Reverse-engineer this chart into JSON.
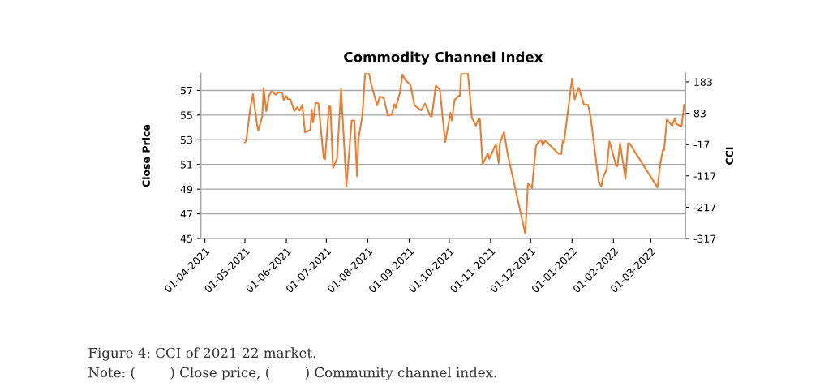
{
  "chart_data": {
    "type": "line",
    "title": "Commodity Channel Index",
    "ylabel": "Close Price",
    "y2label": "CCI",
    "ylim": [
      45,
      58.4
    ],
    "yticks": [
      45,
      47,
      49,
      51,
      53,
      55,
      57
    ],
    "y2lim": [
      -317,
      211
    ],
    "y2ticks": [
      -317,
      -217,
      -117,
      -17,
      83,
      183
    ],
    "xlim": [
      "2021-03-29",
      "2022-03-27"
    ],
    "xticks": [
      {
        "value": "2021-04-01",
        "label": "01-04-2021"
      },
      {
        "value": "2021-05-01",
        "label": "01-05-2021"
      },
      {
        "value": "2021-06-01",
        "label": "01-06-2021"
      },
      {
        "value": "2021-07-01",
        "label": "01-07-2021"
      },
      {
        "value": "2021-08-01",
        "label": "01-08-2021"
      },
      {
        "value": "2021-09-01",
        "label": "01-09-2021"
      },
      {
        "value": "2021-10-01",
        "label": "01-10-2021"
      },
      {
        "value": "2021-11-01",
        "label": "01-11-2021"
      },
      {
        "value": "2021-12-01",
        "label": "01-12-2021"
      },
      {
        "value": "2022-01-01",
        "label": "01-01-2022"
      },
      {
        "value": "2022-02-01",
        "label": "01-02-2022"
      },
      {
        "value": "2022-03-01",
        "label": "01-03-2022"
      }
    ],
    "grid": "y",
    "legend": false,
    "marker": "none",
    "line_style": "solid",
    "series": [
      {
        "color": "#ed7d31",
        "axis": "y2",
        "x": [
          "2021-05-01",
          "2021-05-02",
          "2021-05-05",
          "2021-05-07",
          "2021-05-10",
          "2021-05-11",
          "2021-05-14",
          "2021-05-15",
          "2021-05-17",
          "2021-05-19",
          "2021-05-21",
          "2021-05-24",
          "2021-05-26",
          "2021-05-29",
          "2021-05-30",
          "2021-06-01",
          "2021-06-02",
          "2021-06-04",
          "2021-06-07",
          "2021-06-09",
          "2021-06-11",
          "2021-06-13",
          "2021-06-15",
          "2021-06-19",
          "2021-06-20",
          "2021-06-21",
          "2021-06-23",
          "2021-06-25",
          "2021-06-29",
          "2021-06-30",
          "2021-07-03",
          "2021-07-04",
          "2021-07-06",
          "2021-07-09",
          "2021-07-12",
          "2021-07-16",
          "2021-07-20",
          "2021-07-22",
          "2021-07-24",
          "2021-07-25",
          "2021-07-28",
          "2021-07-30",
          "2021-08-02",
          "2021-08-03",
          "2021-08-08",
          "2021-08-10",
          "2021-08-13",
          "2021-08-16",
          "2021-08-19",
          "2021-08-21",
          "2021-08-22",
          "2021-08-25",
          "2021-08-27",
          "2021-08-29",
          "2021-09-02",
          "2021-09-05",
          "2021-09-10",
          "2021-09-13",
          "2021-09-17",
          "2021-09-18",
          "2021-09-21",
          "2021-09-24",
          "2021-09-28",
          "2021-10-02",
          "2021-10-03",
          "2021-10-05",
          "2021-10-08",
          "2021-10-09",
          "2021-10-10",
          "2021-10-15",
          "2021-10-18",
          "2021-10-21",
          "2021-10-23",
          "2021-10-24",
          "2021-10-26",
          "2021-10-30",
          "2021-10-31",
          "2021-11-05",
          "2021-11-07",
          "2021-11-08",
          "2021-11-11",
          "2021-11-14",
          "2021-11-27",
          "2021-11-29",
          "2021-12-02",
          "2021-12-05",
          "2021-12-07",
          "2021-12-09",
          "2021-12-10",
          "2021-12-12",
          "2021-12-22",
          "2021-12-24",
          "2021-12-25",
          "2021-12-26",
          "2022-01-01",
          "2022-01-03",
          "2022-01-06",
          "2022-01-10",
          "2022-01-13",
          "2022-01-15",
          "2022-01-21",
          "2022-01-23",
          "2022-01-24",
          "2022-01-27",
          "2022-01-29",
          "2022-02-01",
          "2022-02-03",
          "2022-02-04",
          "2022-02-06",
          "2022-02-10",
          "2022-02-12",
          "2022-02-13",
          "2022-03-06",
          "2022-03-08",
          "2022-03-10",
          "2022-03-11",
          "2022-03-13",
          "2022-03-17",
          "2022-03-19",
          "2022-03-20",
          "2022-03-24",
          "2022-03-26"
        ],
        "values": [
          -10,
          -3,
          99,
          144,
          49,
          28,
          73,
          164,
          89,
          138,
          154,
          142,
          149,
          149,
          125,
          138,
          128,
          128,
          89,
          102,
          91,
          110,
          22,
          30,
          95,
          54,
          116,
          115,
          -61,
          -63,
          105,
          104,
          -92,
          -62,
          161,
          -149,
          60,
          59,
          -119,
          0,
          77,
          211,
          211,
          185,
          108,
          136,
          132,
          76,
          79,
          112,
          101,
          147,
          207,
          190,
          173,
          108,
          92,
          114,
          73,
          73,
          171,
          158,
          -9,
          84,
          60,
          125,
          138,
          137,
          211,
          211,
          69,
          43,
          65,
          64,
          -80,
          -45,
          -63,
          -16,
          -76,
          -13,
          23,
          -52,
          -302,
          -140,
          -156,
          -22,
          -7,
          -3,
          -19,
          -4,
          -47,
          -47,
          -7,
          -10,
          193,
          127,
          164,
          110,
          110,
          69,
          -136,
          -151,
          -125,
          -95,
          -7,
          -52,
          -86,
          -86,
          -13,
          -127,
          -13,
          -13,
          -154,
          -82,
          -35,
          -35,
          63,
          43,
          67,
          49,
          41,
          110
        ]
      }
    ],
    "annotations": [
      "Figure 4: CCI of 2021-22 market.",
      "Note: (        ) Close price, (        ) Community channel index."
    ]
  }
}
